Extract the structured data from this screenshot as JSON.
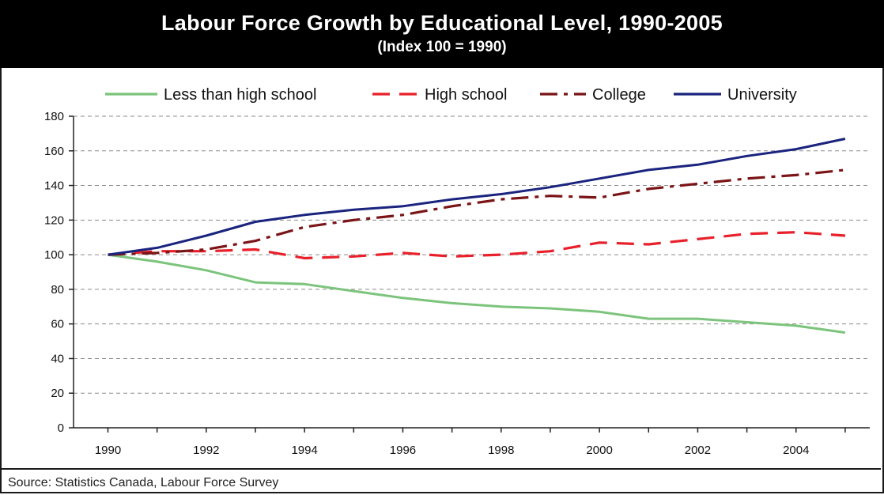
{
  "chart_data": {
    "type": "line",
    "title": "Labour Force Growth by Educational Level, 1990-2005",
    "subtitle": "(Index 100 = 1990)",
    "x": [
      1990,
      1991,
      1992,
      1993,
      1994,
      1995,
      1996,
      1997,
      1998,
      1999,
      2000,
      2001,
      2002,
      2003,
      2004,
      2005
    ],
    "x_tick_labels": [
      "1990",
      "1992",
      "1994",
      "1996",
      "1998",
      "2000",
      "2002",
      "2004"
    ],
    "xlim": [
      1989.3,
      2005.5
    ],
    "ylim": [
      0,
      180
    ],
    "y_ticks": [
      0,
      20,
      40,
      60,
      80,
      100,
      120,
      140,
      160,
      180
    ],
    "grid": "horizontal-dashed",
    "legend_position": "top",
    "series": [
      {
        "name": "Less than high school",
        "color": "#7cc47c",
        "dash": "solid",
        "values": [
          100,
          96,
          91,
          84,
          83,
          79,
          75,
          72,
          70,
          69,
          67,
          63,
          63,
          61,
          59,
          55
        ]
      },
      {
        "name": "High school",
        "color": "#e8202a",
        "dash": "dashed",
        "values": [
          100,
          102,
          102,
          103,
          98,
          99,
          101,
          99,
          100,
          102,
          107,
          106,
          109,
          112,
          113,
          111
        ]
      },
      {
        "name": "College",
        "color": "#7a1416",
        "dash": "dashdot",
        "values": [
          100,
          101,
          103,
          108,
          116,
          120,
          123,
          128,
          132,
          134,
          133,
          138,
          141,
          144,
          146,
          149
        ]
      },
      {
        "name": "University",
        "color": "#1a237e",
        "dash": "solid",
        "values": [
          100,
          104,
          111,
          119,
          123,
          126,
          128,
          132,
          135,
          139,
          144,
          149,
          152,
          157,
          161,
          167
        ]
      }
    ]
  },
  "source": "Source: Statistics Canada, Labour Force Survey"
}
